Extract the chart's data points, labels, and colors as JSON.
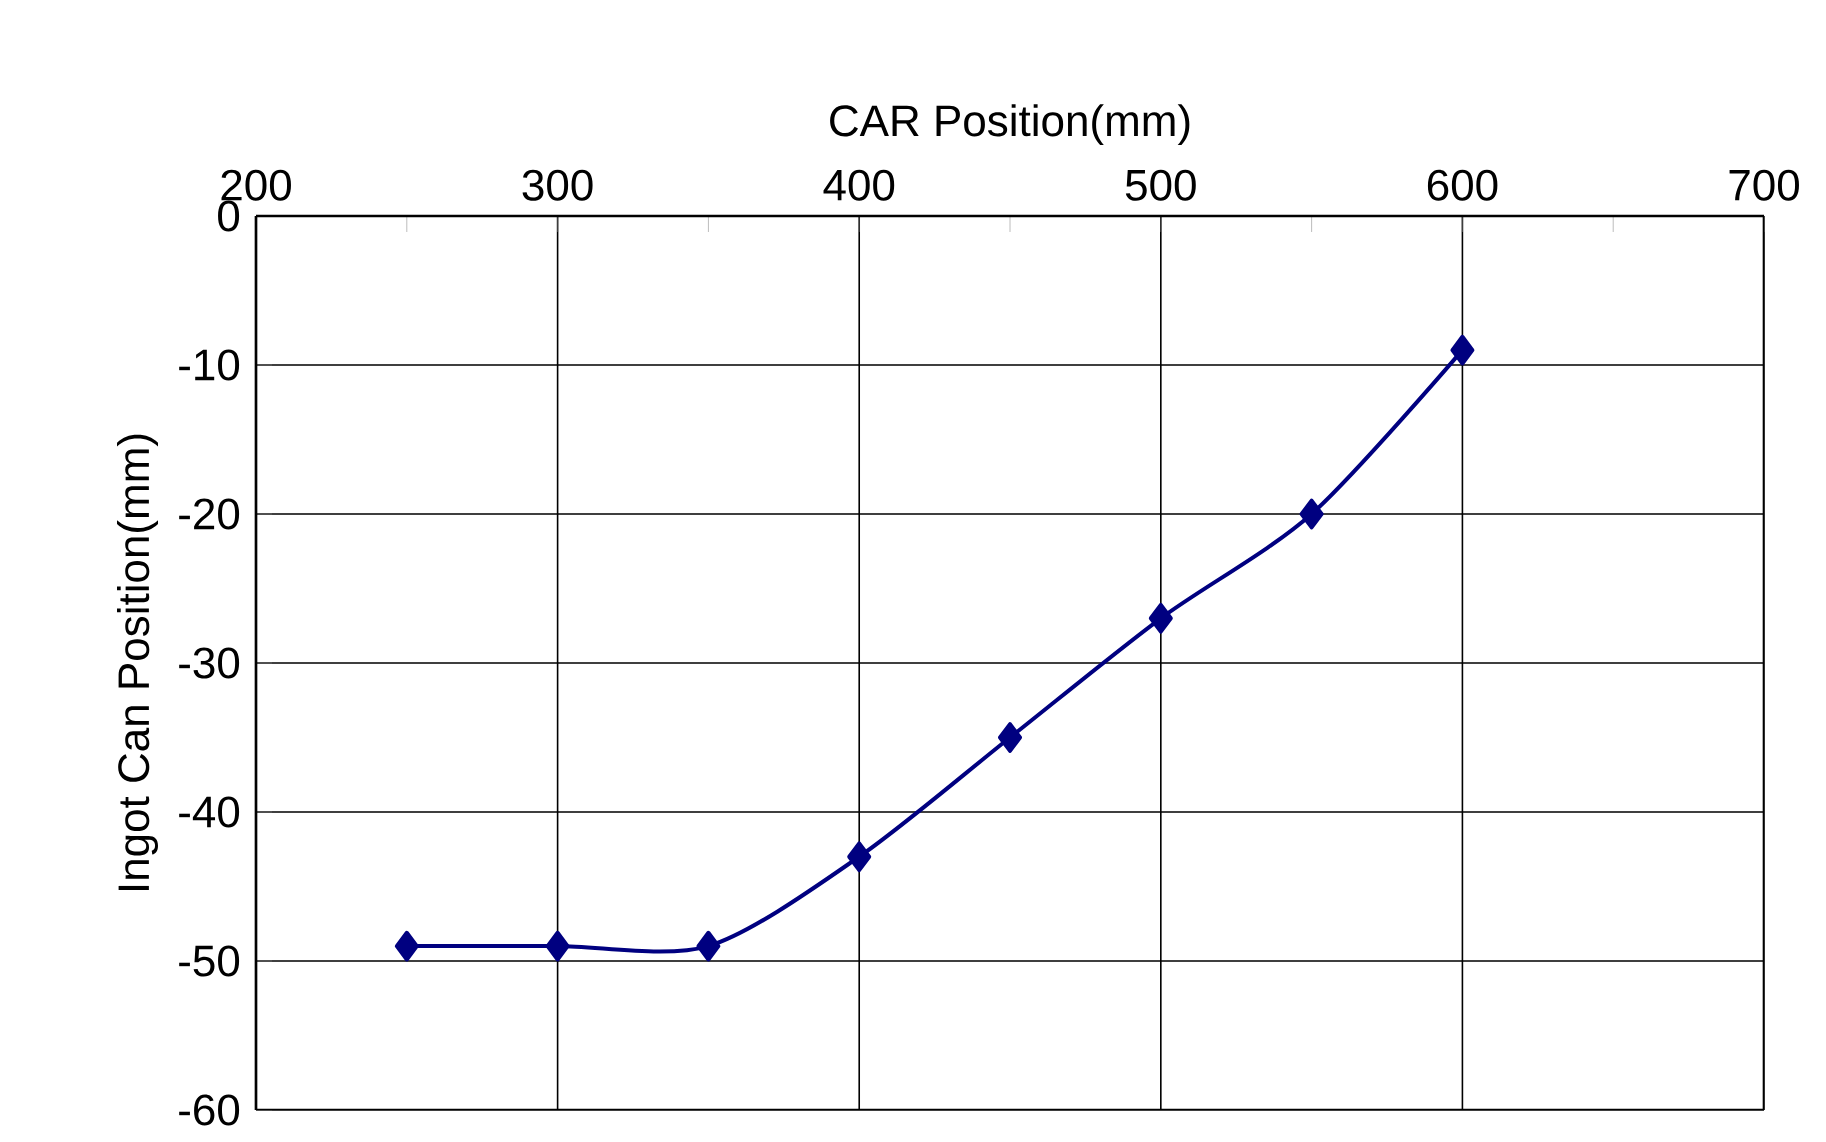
{
  "chart_data": {
    "type": "line",
    "xlabel": "CAR Position(mm)",
    "ylabel": "Ingot Can Position(mm)",
    "x": [
      250,
      300,
      350,
      400,
      450,
      500,
      550,
      600
    ],
    "series": [
      {
        "color": "#000080",
        "values": [
          -49,
          -49,
          -49,
          -43,
          -35,
          -27,
          -20,
          -9
        ]
      }
    ],
    "xlim": [
      200,
      700
    ],
    "xticks": [
      200,
      300,
      400,
      500,
      600,
      700
    ],
    "ylim": [
      -60,
      0
    ],
    "yticks": [
      -60,
      -50,
      -40,
      -30,
      -20,
      -10,
      0
    ],
    "grid": true,
    "marker": "diamond",
    "line_style": "solid"
  }
}
